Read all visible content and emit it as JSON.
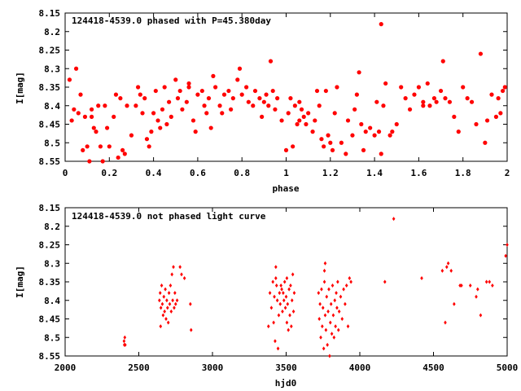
{
  "chart_data": [
    {
      "type": "scatter",
      "title": "124418-4539.0 phased with P=45.380day",
      "xlabel": "phase",
      "ylabel": "I[mag]",
      "xlim": [
        0,
        2
      ],
      "ylim": [
        8.15,
        8.55
      ],
      "y_inverted": true,
      "grid": false,
      "legend": "none",
      "marker_color": "#ff0000",
      "marker": "filled-circle",
      "x_ticks": [
        "0",
        "0.2",
        "0.4",
        "0.6",
        "0.8",
        "1",
        "1.2",
        "1.4",
        "1.6",
        "1.8",
        "2"
      ],
      "y_ticks": [
        "8.15",
        "8.2",
        "8.25",
        "8.3",
        "8.35",
        "8.4",
        "8.45",
        "8.5",
        "8.55"
      ],
      "points": [
        [
          0.02,
          8.33
        ],
        [
          0.03,
          8.44
        ],
        [
          0.04,
          8.41
        ],
        [
          0.05,
          8.3
        ],
        [
          0.06,
          8.42
        ],
        [
          0.07,
          8.37
        ],
        [
          0.08,
          8.52
        ],
        [
          0.09,
          8.43
        ],
        [
          0.1,
          8.51
        ],
        [
          0.11,
          8.55
        ],
        [
          0.12,
          8.43
        ],
        [
          0.13,
          8.46
        ],
        [
          0.14,
          8.47
        ],
        [
          0.15,
          8.4
        ],
        [
          0.16,
          8.51
        ],
        [
          0.17,
          8.55
        ],
        [
          0.18,
          8.4
        ],
        [
          0.19,
          8.46
        ],
        [
          0.2,
          8.51
        ],
        [
          0.22,
          8.43
        ],
        [
          0.23,
          8.37
        ],
        [
          0.25,
          8.38
        ],
        [
          0.26,
          8.52
        ],
        [
          0.27,
          8.53
        ],
        [
          0.28,
          8.4
        ],
        [
          0.3,
          8.48
        ],
        [
          0.32,
          8.4
        ],
        [
          0.33,
          8.35
        ],
        [
          0.34,
          8.37
        ],
        [
          0.35,
          8.42
        ],
        [
          0.36,
          8.38
        ],
        [
          0.37,
          8.49
        ],
        [
          0.38,
          8.51
        ],
        [
          0.39,
          8.47
        ],
        [
          0.4,
          8.42
        ],
        [
          0.41,
          8.36
        ],
        [
          0.42,
          8.44
        ],
        [
          0.43,
          8.46
        ],
        [
          0.44,
          8.41
        ],
        [
          0.45,
          8.35
        ],
        [
          0.46,
          8.45
        ],
        [
          0.47,
          8.39
        ],
        [
          0.48,
          8.43
        ],
        [
          0.5,
          8.33
        ],
        [
          0.51,
          8.38
        ],
        [
          0.52,
          8.36
        ],
        [
          0.53,
          8.41
        ],
        [
          0.55,
          8.39
        ],
        [
          0.56,
          8.35
        ],
        [
          0.58,
          8.44
        ],
        [
          0.59,
          8.47
        ],
        [
          0.6,
          8.37
        ],
        [
          0.62,
          8.36
        ],
        [
          0.63,
          8.4
        ],
        [
          0.64,
          8.42
        ],
        [
          0.65,
          8.38
        ],
        [
          0.66,
          8.46
        ],
        [
          0.67,
          8.32
        ],
        [
          0.68,
          8.35
        ],
        [
          0.7,
          8.4
        ],
        [
          0.71,
          8.42
        ],
        [
          0.72,
          8.37
        ],
        [
          0.74,
          8.36
        ],
        [
          0.75,
          8.41
        ],
        [
          0.76,
          8.38
        ],
        [
          0.78,
          8.33
        ],
        [
          0.79,
          8.3
        ],
        [
          0.8,
          8.37
        ],
        [
          0.82,
          8.35
        ],
        [
          0.83,
          8.39
        ],
        [
          0.85,
          8.4
        ],
        [
          0.86,
          8.36
        ],
        [
          0.88,
          8.38
        ],
        [
          0.89,
          8.43
        ],
        [
          0.9,
          8.39
        ],
        [
          0.91,
          8.37
        ],
        [
          0.92,
          8.4
        ],
        [
          0.93,
          8.28
        ],
        [
          0.94,
          8.36
        ],
        [
          0.95,
          8.41
        ],
        [
          0.96,
          8.38
        ],
        [
          0.98,
          8.44
        ],
        [
          1.0,
          8.52
        ],
        [
          1.01,
          8.42
        ],
        [
          1.02,
          8.38
        ],
        [
          1.03,
          8.51
        ],
        [
          1.04,
          8.4
        ],
        [
          1.05,
          8.45
        ],
        [
          1.06,
          8.39
        ],
        [
          1.07,
          8.41
        ],
        [
          1.08,
          8.43
        ],
        [
          1.09,
          8.45
        ],
        [
          1.1,
          8.42
        ],
        [
          1.12,
          8.47
        ],
        [
          1.13,
          8.44
        ],
        [
          1.14,
          8.36
        ],
        [
          1.15,
          8.4
        ],
        [
          1.16,
          8.49
        ],
        [
          1.17,
          8.51
        ],
        [
          1.18,
          8.36
        ],
        [
          1.19,
          8.48
        ],
        [
          1.2,
          8.5
        ],
        [
          1.21,
          8.52
        ],
        [
          1.22,
          8.42
        ],
        [
          1.23,
          8.35
        ],
        [
          1.25,
          8.5
        ],
        [
          1.27,
          8.53
        ],
        [
          1.28,
          8.44
        ],
        [
          1.3,
          8.48
        ],
        [
          1.31,
          8.41
        ],
        [
          1.32,
          8.37
        ],
        [
          1.33,
          8.31
        ],
        [
          1.34,
          8.45
        ],
        [
          1.35,
          8.52
        ],
        [
          1.36,
          8.47
        ],
        [
          1.38,
          8.46
        ],
        [
          1.4,
          8.48
        ],
        [
          1.41,
          8.39
        ],
        [
          1.42,
          8.47
        ],
        [
          1.43,
          8.53
        ],
        [
          1.44,
          8.4
        ],
        [
          1.45,
          8.34
        ],
        [
          1.47,
          8.48
        ],
        [
          1.48,
          8.47
        ],
        [
          1.5,
          8.45
        ],
        [
          1.52,
          8.35
        ],
        [
          1.54,
          8.38
        ],
        [
          1.56,
          8.41
        ],
        [
          1.58,
          8.37
        ],
        [
          1.6,
          8.35
        ],
        [
          1.62,
          8.39
        ],
        [
          1.64,
          8.34
        ],
        [
          1.65,
          8.4
        ],
        [
          1.67,
          8.38
        ],
        [
          1.68,
          8.39
        ],
        [
          1.7,
          8.36
        ],
        [
          1.71,
          8.28
        ],
        [
          1.72,
          8.38
        ],
        [
          1.74,
          8.39
        ],
        [
          1.76,
          8.43
        ],
        [
          1.78,
          8.47
        ],
        [
          1.8,
          8.35
        ],
        [
          1.82,
          8.38
        ],
        [
          1.84,
          8.39
        ],
        [
          1.86,
          8.45
        ],
        [
          1.88,
          8.26
        ],
        [
          1.9,
          8.5
        ],
        [
          1.91,
          8.44
        ],
        [
          1.93,
          8.37
        ],
        [
          1.95,
          8.43
        ],
        [
          1.96,
          8.38
        ],
        [
          1.97,
          8.42
        ],
        [
          1.98,
          8.36
        ],
        [
          1.99,
          8.35
        ],
        [
          1.62,
          8.4
        ],
        [
          1.06,
          8.44
        ],
        [
          0.24,
          8.54
        ],
        [
          0.12,
          8.41
        ],
        [
          0.56,
          8.34
        ],
        [
          1.43,
          8.18
        ]
      ]
    },
    {
      "type": "scatter",
      "title": "124418-4539.0 not phased light curve",
      "xlabel": "hjd0",
      "ylabel": "I[mag]",
      "xlim": [
        2000,
        5000
      ],
      "ylim": [
        8.15,
        8.55
      ],
      "y_inverted": true,
      "grid": false,
      "legend": "none",
      "marker_color": "#ff0000",
      "marker": "small-diamond",
      "x_ticks": [
        "2000",
        "2500",
        "3000",
        "3500",
        "4000",
        "4500",
        "5000"
      ],
      "y_ticks": [
        "8.15",
        "8.2",
        "8.25",
        "8.3",
        "8.35",
        "8.4",
        "8.45",
        "8.5",
        "8.55"
      ],
      "points": [
        [
          2400,
          8.51
        ],
        [
          2402,
          8.52
        ],
        [
          2405,
          8.5
        ],
        [
          2408,
          8.52
        ],
        [
          2640,
          8.4
        ],
        [
          2645,
          8.38
        ],
        [
          2648,
          8.47
        ],
        [
          2650,
          8.42
        ],
        [
          2655,
          8.36
        ],
        [
          2660,
          8.41
        ],
        [
          2665,
          8.44
        ],
        [
          2670,
          8.39
        ],
        [
          2675,
          8.43
        ],
        [
          2680,
          8.37
        ],
        [
          2685,
          8.45
        ],
        [
          2690,
          8.4
        ],
        [
          2695,
          8.42
        ],
        [
          2700,
          8.46
        ],
        [
          2705,
          8.38
        ],
        [
          2710,
          8.41
        ],
        [
          2715,
          8.36
        ],
        [
          2720,
          8.43
        ],
        [
          2725,
          8.33
        ],
        [
          2730,
          8.4
        ],
        [
          2735,
          8.31
        ],
        [
          2740,
          8.42
        ],
        [
          2745,
          8.38
        ],
        [
          2750,
          8.41
        ],
        [
          2760,
          8.4
        ],
        [
          2780,
          8.31
        ],
        [
          2790,
          8.33
        ],
        [
          2810,
          8.34
        ],
        [
          2850,
          8.41
        ],
        [
          2855,
          8.48
        ],
        [
          3380,
          8.47
        ],
        [
          3390,
          8.38
        ],
        [
          3400,
          8.42
        ],
        [
          3410,
          8.35
        ],
        [
          3415,
          8.46
        ],
        [
          3420,
          8.39
        ],
        [
          3425,
          8.51
        ],
        [
          3430,
          8.34
        ],
        [
          3435,
          8.36
        ],
        [
          3440,
          8.4
        ],
        [
          3445,
          8.53
        ],
        [
          3450,
          8.44
        ],
        [
          3455,
          8.38
        ],
        [
          3460,
          8.41
        ],
        [
          3465,
          8.36
        ],
        [
          3470,
          8.37
        ],
        [
          3475,
          8.43
        ],
        [
          3480,
          8.38
        ],
        [
          3485,
          8.4
        ],
        [
          3490,
          8.35
        ],
        [
          3495,
          8.42
        ],
        [
          3500,
          8.39
        ],
        [
          3505,
          8.46
        ],
        [
          3510,
          8.41
        ],
        [
          3515,
          8.48
        ],
        [
          3520,
          8.37
        ],
        [
          3525,
          8.44
        ],
        [
          3530,
          8.36
        ],
        [
          3535,
          8.47
        ],
        [
          3540,
          8.4
        ],
        [
          3545,
          8.33
        ],
        [
          3550,
          8.43
        ],
        [
          3555,
          8.38
        ],
        [
          3430,
          8.31
        ],
        [
          3505,
          8.34
        ],
        [
          3720,
          8.38
        ],
        [
          3725,
          8.45
        ],
        [
          3730,
          8.41
        ],
        [
          3735,
          8.5
        ],
        [
          3740,
          8.37
        ],
        [
          3745,
          8.47
        ],
        [
          3750,
          8.42
        ],
        [
          3755,
          8.53
        ],
        [
          3760,
          8.35
        ],
        [
          3765,
          8.44
        ],
        [
          3770,
          8.48
        ],
        [
          3775,
          8.39
        ],
        [
          3780,
          8.52
        ],
        [
          3785,
          8.43
        ],
        [
          3790,
          8.37
        ],
        [
          3795,
          8.55
        ],
        [
          3800,
          8.46
        ],
        [
          3805,
          8.41
        ],
        [
          3810,
          8.49
        ],
        [
          3815,
          8.36
        ],
        [
          3820,
          8.44
        ],
        [
          3825,
          8.5
        ],
        [
          3830,
          8.4
        ],
        [
          3835,
          8.47
        ],
        [
          3840,
          8.38
        ],
        [
          3845,
          8.42
        ],
        [
          3850,
          8.35
        ],
        [
          3855,
          8.48
        ],
        [
          3860,
          8.43
        ],
        [
          3870,
          8.39
        ],
        [
          3880,
          8.45
        ],
        [
          3890,
          8.37
        ],
        [
          3900,
          8.41
        ],
        [
          3910,
          8.36
        ],
        [
          3920,
          8.47
        ],
        [
          3930,
          8.34
        ],
        [
          3940,
          8.35
        ],
        [
          3760,
          8.32
        ],
        [
          3765,
          8.3
        ],
        [
          4170,
          8.35
        ],
        [
          4230,
          8.18
        ],
        [
          4420,
          8.34
        ],
        [
          4560,
          8.32
        ],
        [
          4580,
          8.46
        ],
        [
          4590,
          8.31
        ],
        [
          4600,
          8.3
        ],
        [
          4620,
          8.32
        ],
        [
          4640,
          8.41
        ],
        [
          4680,
          8.36
        ],
        [
          4690,
          8.36
        ],
        [
          4750,
          8.36
        ],
        [
          4790,
          8.39
        ],
        [
          4800,
          8.37
        ],
        [
          4820,
          8.44
        ],
        [
          4860,
          8.35
        ],
        [
          4880,
          8.35
        ],
        [
          4900,
          8.36
        ],
        [
          4990,
          8.28
        ],
        [
          5000,
          8.25
        ]
      ]
    }
  ]
}
